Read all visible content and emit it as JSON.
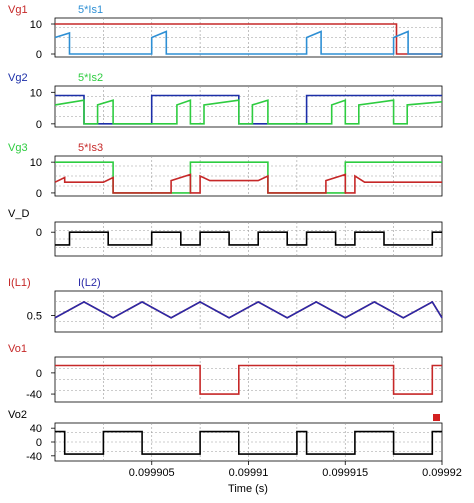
{
  "chart_data": {
    "type": "line",
    "xlabel": "Time (s)",
    "xlim": [
      0.0999,
      0.09992
    ],
    "x_ticks": [
      "0.099905",
      "0.09991",
      "0.099915",
      "0.09992"
    ],
    "grid": true,
    "panels": [
      {
        "ylim": [
          -1,
          12
        ],
        "y_ticks": [
          "10",
          "0"
        ],
        "y_tick_values": [
          10,
          0
        ],
        "series": [
          {
            "name": "Vg1",
            "color": "#c62828",
            "points": [
              [
                0.0999,
                10
              ],
              [
                0.09991765,
                10
              ],
              [
                0.09991765,
                0
              ],
              [
                0.09992,
                0
              ]
            ]
          },
          {
            "name": "5*Is1",
            "color": "#2e8fd4",
            "points": [
              [
                0.0999,
                5.5
              ],
              [
                0.09990075,
                7
              ],
              [
                0.09990075,
                0
              ],
              [
                0.099905,
                0
              ],
              [
                0.099905,
                5.5
              ],
              [
                0.09990575,
                7.5
              ],
              [
                0.09990575,
                0
              ],
              [
                0.099913,
                0
              ],
              [
                0.099913,
                5.5
              ],
              [
                0.09991375,
                7.5
              ],
              [
                0.09991375,
                0
              ],
              [
                0.0999175,
                0
              ],
              [
                0.0999175,
                5.5
              ],
              [
                0.09991825,
                7.5
              ],
              [
                0.09991825,
                0
              ],
              [
                0.09992,
                0
              ]
            ]
          }
        ]
      },
      {
        "ylim": [
          -1,
          12
        ],
        "y_ticks": [
          "10",
          "0"
        ],
        "y_tick_values": [
          10,
          0
        ],
        "series": [
          {
            "name": "Vg2",
            "color": "#1c2fa8",
            "points": [
              [
                0.0999,
                9
              ],
              [
                0.0999015,
                9
              ],
              [
                0.0999015,
                0
              ],
              [
                0.099905,
                0
              ],
              [
                0.099905,
                9
              ],
              [
                0.0999095,
                9
              ],
              [
                0.0999095,
                0
              ],
              [
                0.099913,
                0
              ],
              [
                0.099913,
                9
              ],
              [
                0.09992,
                9
              ]
            ]
          },
          {
            "name": "5*Is2",
            "color": "#2ecc40",
            "points": [
              [
                0.0999,
                6
              ],
              [
                0.0999015,
                7.5
              ],
              [
                0.0999015,
                0
              ],
              [
                0.0999022,
                0
              ],
              [
                0.0999022,
                6
              ],
              [
                0.099903,
                7.5
              ],
              [
                0.099903,
                0
              ],
              [
                0.0999063,
                0
              ],
              [
                0.0999063,
                6
              ],
              [
                0.099907,
                7.5
              ],
              [
                0.099907,
                0
              ],
              [
                0.0999077,
                0
              ],
              [
                0.0999077,
                6
              ],
              [
                0.0999095,
                7.5
              ],
              [
                0.0999095,
                0
              ],
              [
                0.0999102,
                0
              ],
              [
                0.0999102,
                6
              ],
              [
                0.099911,
                7.5
              ],
              [
                0.099911,
                0
              ],
              [
                0.0999143,
                0
              ],
              [
                0.0999143,
                6
              ],
              [
                0.099915,
                7.5
              ],
              [
                0.099915,
                0
              ],
              [
                0.0999157,
                0
              ],
              [
                0.0999157,
                6
              ],
              [
                0.0999175,
                7.5
              ],
              [
                0.0999175,
                0
              ],
              [
                0.0999182,
                0
              ],
              [
                0.0999182,
                6
              ],
              [
                0.09992,
                7
              ]
            ]
          }
        ]
      },
      {
        "ylim": [
          -1,
          12
        ],
        "y_ticks": [
          "10",
          "0"
        ],
        "y_tick_values": [
          10,
          0
        ],
        "series": [
          {
            "name": "Vg3",
            "color": "#2ecc40",
            "points": [
              [
                0.0999,
                10
              ],
              [
                0.099903,
                10
              ],
              [
                0.099903,
                0
              ],
              [
                0.099907,
                0
              ],
              [
                0.099907,
                10
              ],
              [
                0.099911,
                10
              ],
              [
                0.099911,
                0
              ],
              [
                0.099915,
                0
              ],
              [
                0.099915,
                10
              ],
              [
                0.09992,
                10
              ]
            ]
          },
          {
            "name": "5*Is3",
            "color": "#c62828",
            "points": [
              [
                0.0999,
                3.5
              ],
              [
                0.0999005,
                5
              ],
              [
                0.0999005,
                3.5
              ],
              [
                0.0999025,
                3.5
              ],
              [
                0.099903,
                5
              ],
              [
                0.099903,
                0
              ],
              [
                0.099906,
                0
              ],
              [
                0.099906,
                4
              ],
              [
                0.099907,
                6
              ],
              [
                0.099907,
                0
              ],
              [
                0.0999075,
                0
              ],
              [
                0.0999075,
                5.5
              ],
              [
                0.099908,
                4
              ],
              [
                0.0999105,
                4
              ],
              [
                0.099911,
                5.5
              ],
              [
                0.099911,
                0
              ],
              [
                0.099914,
                0
              ],
              [
                0.099914,
                4
              ],
              [
                0.099915,
                6
              ],
              [
                0.099915,
                0
              ],
              [
                0.0999155,
                0
              ],
              [
                0.0999155,
                5.5
              ],
              [
                0.099916,
                3.5
              ],
              [
                0.09992,
                3.5
              ]
            ]
          }
        ]
      },
      {
        "ylim": [
          -2.8,
          1.2
        ],
        "y_ticks": [
          "0"
        ],
        "y_tick_values": [
          0
        ],
        "series": [
          {
            "name": "V_D",
            "color": "#000000",
            "points": [
              [
                0.0999,
                -1.5
              ],
              [
                0.09990075,
                -1.5
              ],
              [
                0.09990075,
                0
              ],
              [
                0.09990275,
                0
              ],
              [
                0.09990275,
                -1.5
              ],
              [
                0.099905,
                -1.5
              ],
              [
                0.099905,
                0
              ],
              [
                0.0999065,
                0
              ],
              [
                0.0999065,
                -1.5
              ],
              [
                0.0999075,
                -1.5
              ],
              [
                0.0999075,
                0
              ],
              [
                0.099909,
                0
              ],
              [
                0.099909,
                -1.5
              ],
              [
                0.0999105,
                -1.5
              ],
              [
                0.0999105,
                0
              ],
              [
                0.099912,
                0
              ],
              [
                0.099912,
                -1.5
              ],
              [
                0.099913,
                -1.5
              ],
              [
                0.099913,
                0
              ],
              [
                0.0999145,
                0
              ],
              [
                0.0999145,
                -1.5
              ],
              [
                0.0999155,
                -1.5
              ],
              [
                0.0999155,
                0
              ],
              [
                0.099917,
                0
              ],
              [
                0.099917,
                -1.5
              ],
              [
                0.0999195,
                -1.5
              ],
              [
                0.0999195,
                0
              ],
              [
                0.09992,
                0
              ]
            ]
          }
        ]
      },
      {
        "ylim": [
          0.2,
          0.95
        ],
        "y_ticks": [
          "0.5"
        ],
        "y_tick_values": [
          0.5
        ],
        "series": [
          {
            "name": "I(L1)",
            "color": "#c62828",
            "points": [
              [
                0.0999,
                0.46
              ],
              [
                0.0999015,
                0.75
              ],
              [
                0.099903,
                0.46
              ],
              [
                0.0999045,
                0.75
              ],
              [
                0.099906,
                0.46
              ],
              [
                0.0999075,
                0.75
              ],
              [
                0.099909,
                0.46
              ],
              [
                0.0999105,
                0.75
              ],
              [
                0.099912,
                0.46
              ],
              [
                0.0999135,
                0.75
              ],
              [
                0.099915,
                0.46
              ],
              [
                0.0999165,
                0.75
              ],
              [
                0.099918,
                0.46
              ],
              [
                0.0999195,
                0.75
              ],
              [
                0.09992,
                0.46
              ]
            ]
          },
          {
            "name": "I(L2)",
            "color": "#2a2aa8",
            "points": [
              [
                0.0999,
                0.46
              ],
              [
                0.0999015,
                0.75
              ],
              [
                0.099903,
                0.46
              ],
              [
                0.0999045,
                0.75
              ],
              [
                0.099906,
                0.46
              ],
              [
                0.0999075,
                0.75
              ],
              [
                0.099909,
                0.46
              ],
              [
                0.0999105,
                0.75
              ],
              [
                0.099912,
                0.46
              ],
              [
                0.0999135,
                0.75
              ],
              [
                0.099915,
                0.46
              ],
              [
                0.0999165,
                0.75
              ],
              [
                0.099918,
                0.46
              ],
              [
                0.0999195,
                0.75
              ],
              [
                0.09992,
                0.46
              ]
            ]
          }
        ]
      },
      {
        "ylim": [
          -55,
          30
        ],
        "y_ticks": [
          "0",
          "-40"
        ],
        "y_tick_values": [
          0,
          -40
        ],
        "series": [
          {
            "name": "Vo1",
            "color": "#c62828",
            "points": [
              [
                0.0999,
                14
              ],
              [
                0.0999075,
                14
              ],
              [
                0.0999075,
                -40
              ],
              [
                0.0999095,
                -40
              ],
              [
                0.0999095,
                14
              ],
              [
                0.0999175,
                14
              ],
              [
                0.0999175,
                -40
              ],
              [
                0.0999195,
                -40
              ],
              [
                0.0999195,
                14
              ],
              [
                0.09992,
                14
              ]
            ]
          }
        ]
      },
      {
        "ylim": [
          -55,
          55
        ],
        "y_ticks": [
          "40",
          "0",
          "-40"
        ],
        "y_tick_values": [
          40,
          0,
          -40
        ],
        "series": [
          {
            "name": "Vo2",
            "color": "#000000",
            "points": [
              [
                0.0999,
                30
              ],
              [
                0.0999005,
                30
              ],
              [
                0.0999005,
                -35
              ],
              [
                0.0999025,
                -35
              ],
              [
                0.0999025,
                30
              ],
              [
                0.0999045,
                30
              ],
              [
                0.0999045,
                -35
              ],
              [
                0.0999075,
                -35
              ],
              [
                0.0999075,
                30
              ],
              [
                0.0999095,
                30
              ],
              [
                0.0999095,
                -35
              ],
              [
                0.0999125,
                -35
              ],
              [
                0.0999125,
                30
              ],
              [
                0.099913,
                30
              ],
              [
                0.099913,
                -35
              ],
              [
                0.0999155,
                -35
              ],
              [
                0.0999155,
                30
              ],
              [
                0.0999175,
                30
              ],
              [
                0.0999175,
                -35
              ],
              [
                0.0999195,
                -35
              ],
              [
                0.0999195,
                30
              ],
              [
                0.09992,
                30
              ]
            ]
          }
        ]
      }
    ]
  }
}
